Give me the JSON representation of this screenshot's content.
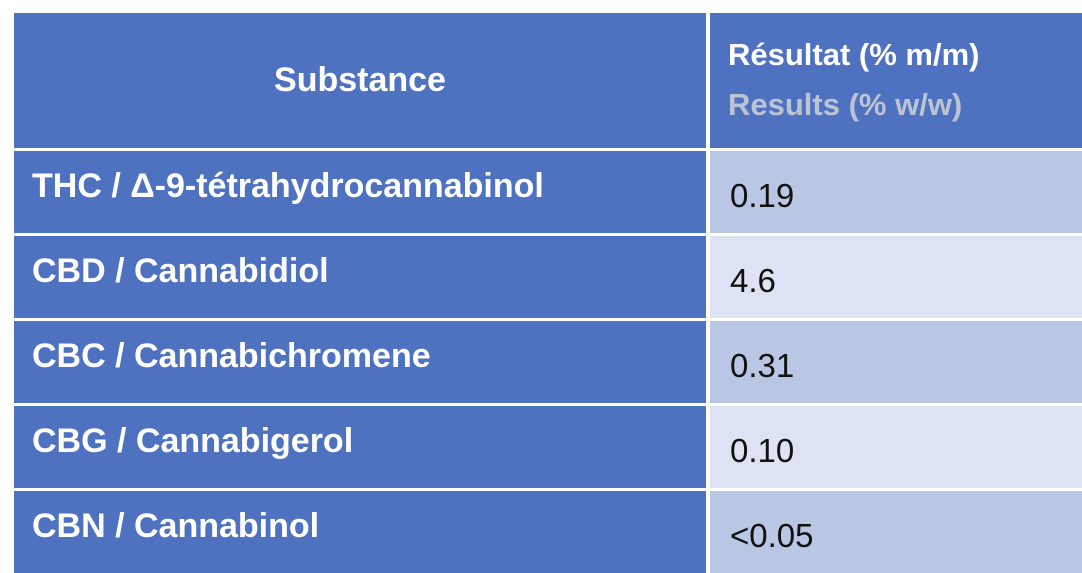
{
  "header": {
    "substance_label": "Substance",
    "result_label_fr": "Résultat (% m/m)",
    "result_label_en": "Results (% w/w)"
  },
  "rows": [
    {
      "substance": "THC / Δ-9-tétrahydrocannabinol",
      "result": "0.19"
    },
    {
      "substance": "CBD / Cannabidiol",
      "result": "4.6"
    },
    {
      "substance": "CBC / Cannabichromene",
      "result": "0.31"
    },
    {
      "substance": "CBG / Cannabigerol",
      "result": "0.10"
    },
    {
      "substance": "CBN / Cannabinol",
      "result": "<0.05"
    }
  ],
  "colors": {
    "header_bg": "#4f72c0",
    "row_alt_1": "#b9c6e4",
    "row_alt_2": "#dde3f2",
    "english_label": "#bcc3d3"
  }
}
